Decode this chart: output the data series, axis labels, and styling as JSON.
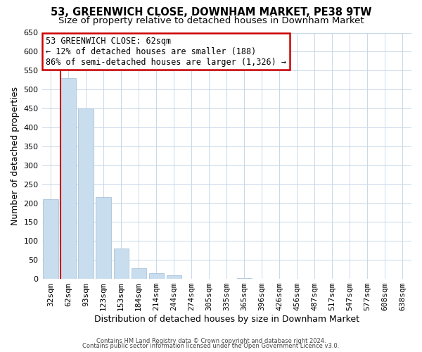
{
  "title": "53, GREENWICH CLOSE, DOWNHAM MARKET, PE38 9TW",
  "subtitle": "Size of property relative to detached houses in Downham Market",
  "xlabel": "Distribution of detached houses by size in Downham Market",
  "ylabel": "Number of detached properties",
  "bar_labels": [
    "32sqm",
    "62sqm",
    "93sqm",
    "123sqm",
    "153sqm",
    "184sqm",
    "214sqm",
    "244sqm",
    "274sqm",
    "305sqm",
    "335sqm",
    "365sqm",
    "396sqm",
    "426sqm",
    "456sqm",
    "487sqm",
    "517sqm",
    "547sqm",
    "577sqm",
    "608sqm",
    "638sqm"
  ],
  "bar_values": [
    210,
    530,
    450,
    215,
    80,
    28,
    15,
    10,
    0,
    0,
    0,
    2,
    0,
    0,
    0,
    1,
    0,
    0,
    0,
    1,
    1
  ],
  "bar_color": "#c8dded",
  "bar_edge_color": "#aac4dc",
  "annotation_text_line1": "53 GREENWICH CLOSE: 62sqm",
  "annotation_text_line2": "← 12% of detached houses are smaller (188)",
  "annotation_text_line3": "86% of semi-detached houses are larger (1,326) →",
  "marker_line_bar_index": 1,
  "ylim": [
    0,
    650
  ],
  "yticks": [
    0,
    50,
    100,
    150,
    200,
    250,
    300,
    350,
    400,
    450,
    500,
    550,
    600,
    650
  ],
  "footer_line1": "Contains HM Land Registry data © Crown copyright and database right 2024.",
  "footer_line2": "Contains public sector information licensed under the Open Government Licence v3.0.",
  "bg_color": "#ffffff",
  "plot_bg_color": "#ffffff",
  "grid_color": "#c8d8e8",
  "title_fontsize": 10.5,
  "subtitle_fontsize": 9.5,
  "axis_label_fontsize": 9,
  "tick_fontsize": 8,
  "annotation_fontsize": 8.5,
  "footer_fontsize": 6,
  "marker_line_color": "#cc0000",
  "annotation_box_edge_color": "#cc0000"
}
